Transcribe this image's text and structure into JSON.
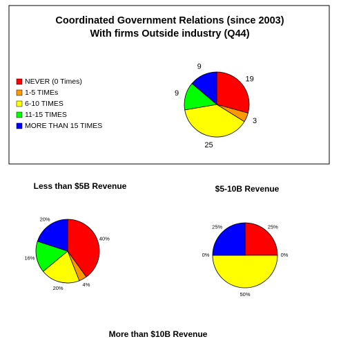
{
  "chart_data": [
    {
      "type": "pie",
      "title": "Coordinated Government Relations (since 2003)",
      "subtitle": "With firms Outside industry (Q44)",
      "categories": [
        "NEVER (0 Times)",
        "1-5 TIMEs",
        "6-10 TIMES",
        "11-15 TIMES",
        "MORE THAN 15 TIMES"
      ],
      "values": [
        19,
        3,
        25,
        9,
        9
      ],
      "colors": [
        "#ff0000",
        "#ff9900",
        "#ffff00",
        "#00ff00",
        "#0000ff"
      ],
      "legend": "left"
    },
    {
      "type": "pie",
      "title": "Less than $5B Revenue",
      "values": [
        40,
        4,
        20,
        16,
        20
      ],
      "value_labels": [
        "40%",
        "4%",
        "20%",
        "16%",
        "20%"
      ],
      "colors": [
        "#ff0000",
        "#ff9900",
        "#ffff00",
        "#00ff00",
        "#0000ff"
      ]
    },
    {
      "type": "pie",
      "title": "$5-10B Revenue",
      "values": [
        25,
        0,
        50,
        0,
        25
      ],
      "value_labels": [
        "25%",
        "0%",
        "50%",
        "0%",
        "25%"
      ],
      "colors": [
        "#ff0000",
        "#ff9900",
        "#ffff00",
        "#00ff00",
        "#0000ff"
      ]
    },
    {
      "type": "pie",
      "title": "More than $10B Revenue"
    }
  ]
}
